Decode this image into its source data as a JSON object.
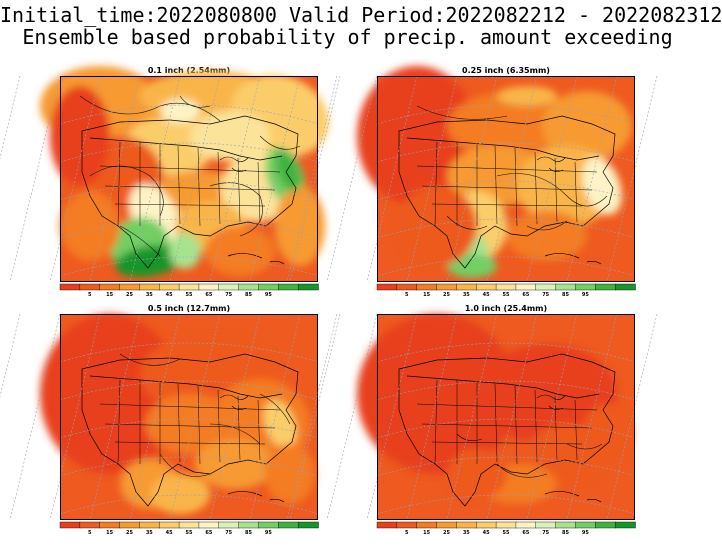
{
  "header": {
    "line1": "Initial_time:2022080800  Valid Period:2022082212 - 2022082312",
    "line2": "Ensemble based probability of precip. amount exceeding"
  },
  "colorbar": {
    "colors": [
      "#e8401c",
      "#ee5a1f",
      "#f47c22",
      "#f79a30",
      "#f9b548",
      "#fbcd6b",
      "#fce39a",
      "#fdf3c4",
      "#d9f2b9",
      "#a7e38e",
      "#72cf63",
      "#3fb240",
      "#16962a"
    ],
    "labels": [
      "5",
      "15",
      "25",
      "35",
      "45",
      "55",
      "65",
      "75",
      "85",
      "95"
    ]
  },
  "panels": [
    {
      "title": "0.1 inch (2.54mm)",
      "variant": "p01"
    },
    {
      "title": "0.25 inch (6.35mm)",
      "variant": "p025"
    },
    {
      "title": "0.5 inch (12.7mm)",
      "variant": "p05"
    },
    {
      "title": "1.0 inch (25.4mm)",
      "variant": "p10"
    }
  ]
}
